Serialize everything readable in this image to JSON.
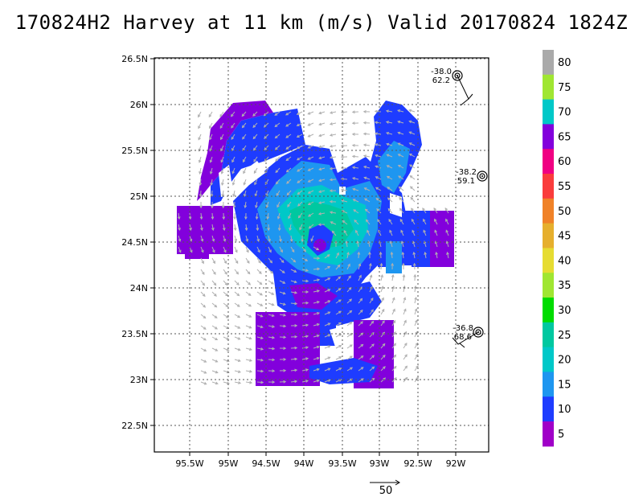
{
  "title": "170824H2  Harvey at 11 km (m/s) Valid 20170824  1824Z",
  "axes": {
    "lon_ticks": [
      "95.5W",
      "95W",
      "94.5W",
      "94W",
      "93.5W",
      "93W",
      "92.5W",
      "92W"
    ],
    "lat_ticks": [
      "26.5N",
      "26N",
      "25.5N",
      "25N",
      "24.5N",
      "24N",
      "23.5N",
      "23N",
      "22.5N"
    ]
  },
  "colorbar": {
    "labels": [
      "80",
      "75",
      "70",
      "65",
      "60",
      "55",
      "50",
      "45",
      "40",
      "35",
      "30",
      "25",
      "20",
      "15",
      "10",
      "5"
    ],
    "colors": [
      "#aaaaaa",
      "#a0e632",
      "#00c8c8",
      "#8200dc",
      "#f00082",
      "#fa3c3c",
      "#f08228",
      "#e6af2d",
      "#e6dc32",
      "#a0e632",
      "#00dc00",
      "#00c8a0",
      "#00c8c8",
      "#1e96f0",
      "#1e3cff",
      "#a000c8"
    ]
  },
  "dropsondes": [
    {
      "top": "-38.0",
      "bottom": "62.2"
    },
    {
      "top": "-38.2",
      "bottom": "59.1"
    },
    {
      "top": "-36.8",
      "bottom": "68.6"
    }
  ],
  "reference_vector": {
    "label": "50"
  }
}
